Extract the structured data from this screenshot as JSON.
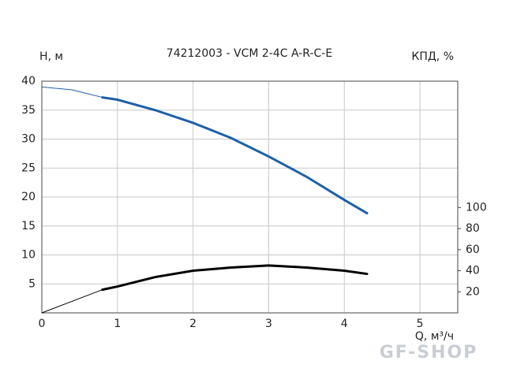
{
  "chart_data": {
    "type": "line",
    "title": "74212003 - VCM 2-4C A-R-C-E",
    "y_label": "H, м",
    "y2_label": "КПД, %",
    "x_label": "Q, м³/ч",
    "watermark": "GF-SHOP",
    "xlim": [
      0,
      5.5
    ],
    "xticks": [
      0,
      1,
      2,
      3,
      4,
      5
    ],
    "ylim": [
      0,
      40
    ],
    "yticks": [
      5,
      10,
      15,
      20,
      25,
      30,
      35,
      40
    ],
    "y2lim": [
      0,
      220
    ],
    "y2ticks": [
      20,
      40,
      60,
      80,
      100
    ],
    "grid": true,
    "series": [
      {
        "color": "#1f5fa8",
        "width": 1,
        "x": [
          0,
          0.4,
          0.8
        ],
        "values": [
          39,
          38.5,
          37.2
        ]
      },
      {
        "color": "#1f5fa8",
        "width": 3,
        "x": [
          0.8,
          1,
          1.5,
          2,
          2.5,
          3,
          3.5,
          4,
          4.3
        ],
        "values": [
          37.2,
          36.8,
          35,
          32.8,
          30.2,
          27,
          23.5,
          19.5,
          17.2
        ]
      },
      {
        "color": "#000000",
        "width": 1,
        "axis": "y2",
        "x": [
          0,
          0.4,
          0.8
        ],
        "values": [
          0,
          11,
          22
        ]
      },
      {
        "color": "#000000",
        "width": 3,
        "axis": "y2",
        "x": [
          0.8,
          1,
          1.5,
          2,
          2.5,
          3,
          3.5,
          4,
          4.3
        ],
        "values": [
          22,
          25,
          34,
          40,
          43,
          45,
          43,
          40,
          37
        ]
      }
    ]
  }
}
